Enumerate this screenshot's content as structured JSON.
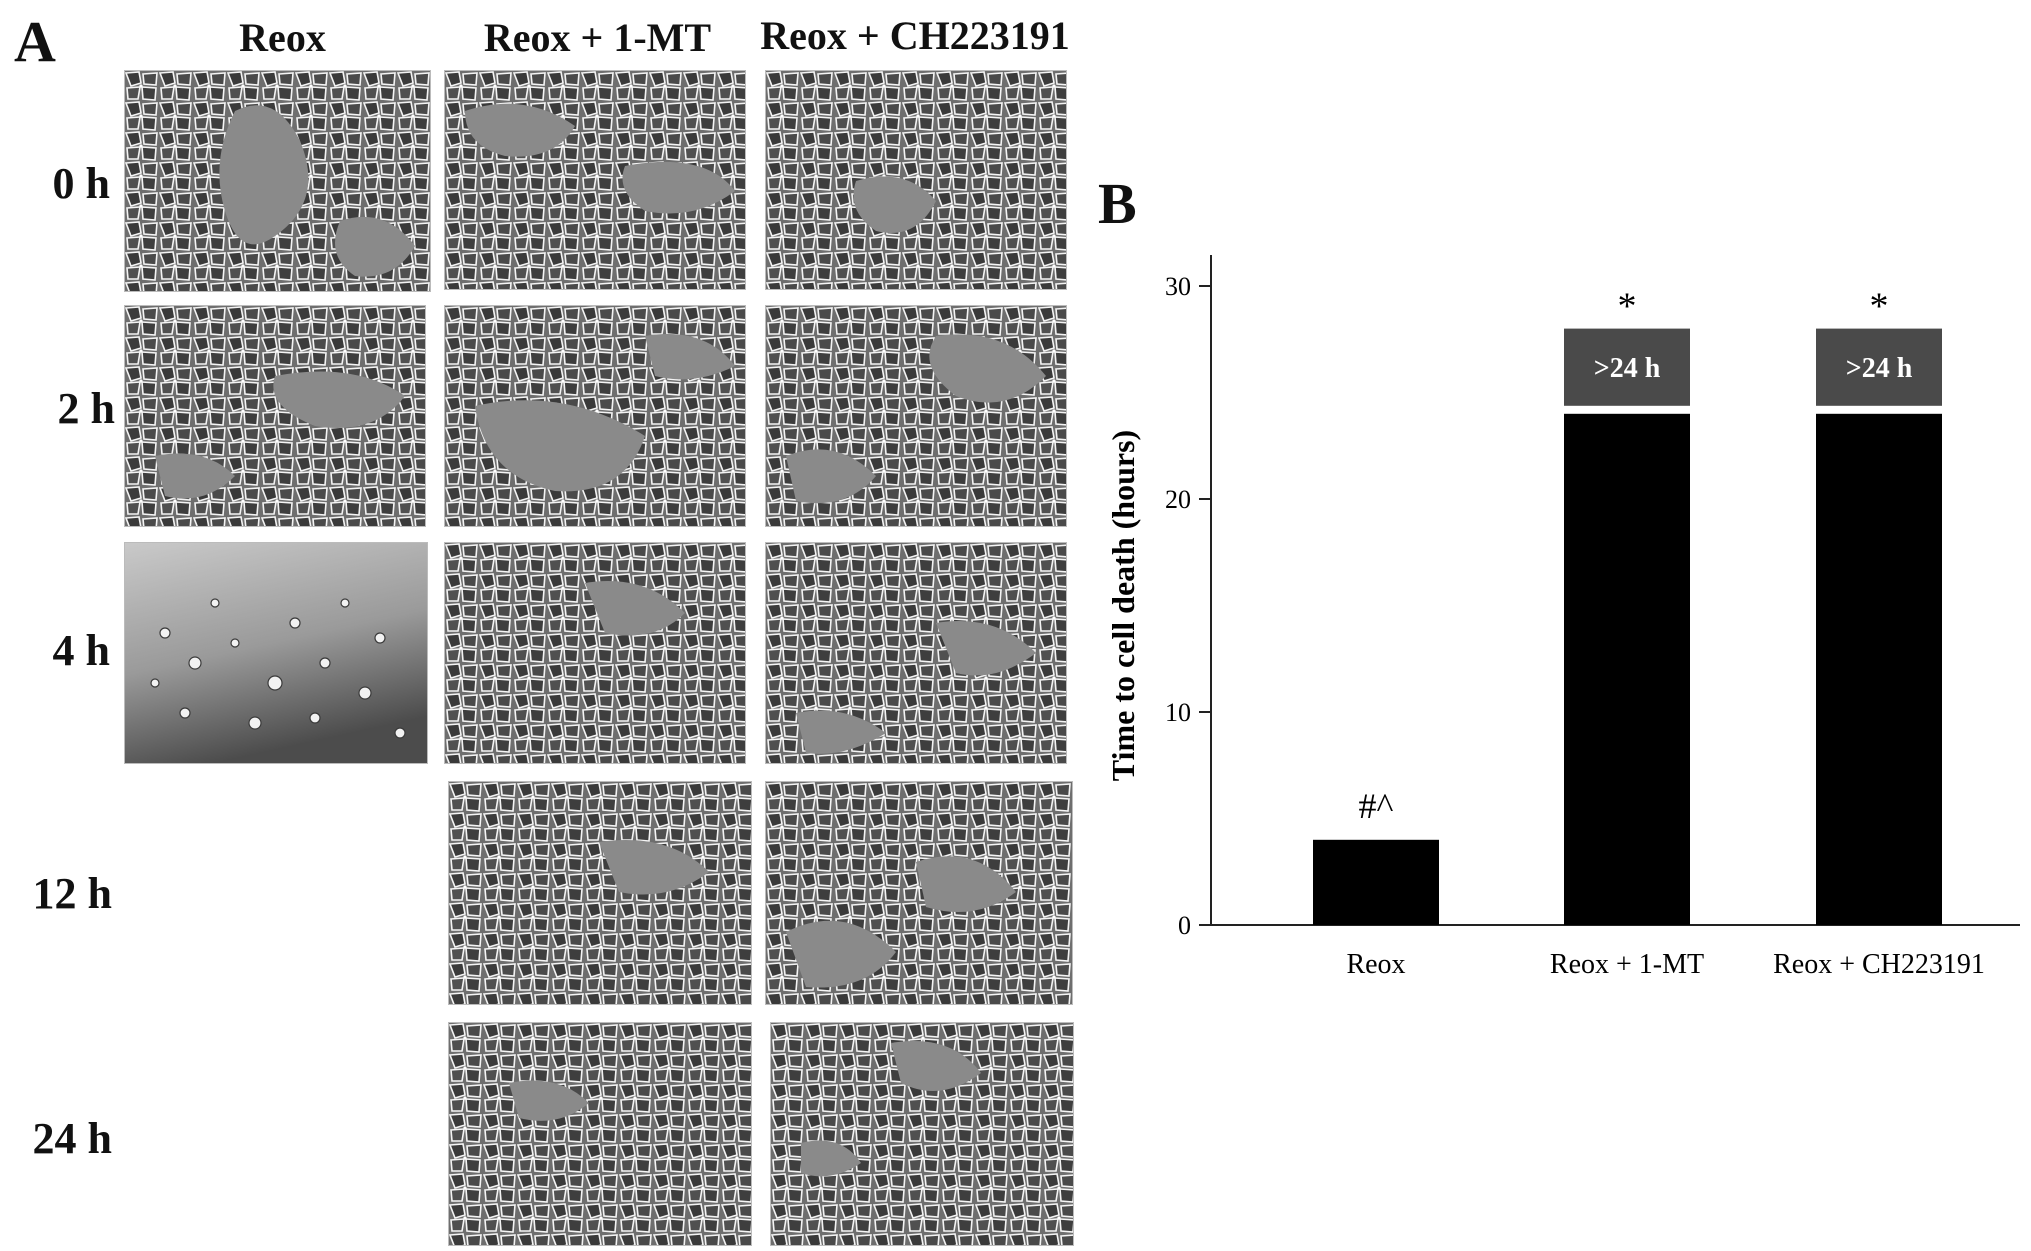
{
  "panel_a": {
    "label": "A",
    "columns": [
      "Reox",
      "Reox + 1-MT",
      "Reox + CH223191"
    ],
    "rows": [
      "0 h",
      "2 h",
      "4 h",
      "12 h",
      "24 h"
    ],
    "images": [
      {
        "row": 0,
        "col": 0,
        "appearance": "confluent cells with gaps"
      },
      {
        "row": 0,
        "col": 1,
        "appearance": "confluent cells with gaps"
      },
      {
        "row": 0,
        "col": 2,
        "appearance": "confluent cells with gaps"
      },
      {
        "row": 1,
        "col": 0,
        "appearance": "confluent cells with gaps"
      },
      {
        "row": 1,
        "col": 1,
        "appearance": "confluent cells with gaps"
      },
      {
        "row": 1,
        "col": 2,
        "appearance": "confluent cells with gaps"
      },
      {
        "row": 2,
        "col": 0,
        "appearance": "detached dead cells"
      },
      {
        "row": 2,
        "col": 1,
        "appearance": "confluent cells with gaps"
      },
      {
        "row": 2,
        "col": 2,
        "appearance": "confluent cells with gaps"
      },
      {
        "row": 3,
        "col": 1,
        "appearance": "confluent cells with gaps"
      },
      {
        "row": 3,
        "col": 2,
        "appearance": "confluent cells with gaps"
      },
      {
        "row": 4,
        "col": 1,
        "appearance": "confluent cells with gaps"
      },
      {
        "row": 4,
        "col": 2,
        "appearance": "confluent cells with gaps"
      }
    ]
  },
  "panel_b": {
    "label": "B"
  },
  "chart_data": {
    "type": "bar",
    "categories": [
      "Reox",
      "Reox + 1-MT",
      "Reox + CH223191"
    ],
    "values": [
      4,
      24,
      24
    ],
    "box_labels": [
      "",
      ">24 h",
      ">24 h"
    ],
    "box_extent": [
      0,
      4,
      4
    ],
    "annotations": [
      "#^",
      "*",
      "*"
    ],
    "title": "",
    "xlabel": "",
    "ylabel": "Time to cell death (hours)",
    "ylim": [
      0,
      30
    ],
    "yticks": [
      0,
      10,
      20,
      30
    ],
    "grid": false,
    "bar_color": "#000000",
    "box_color": "#4a4a4a"
  }
}
